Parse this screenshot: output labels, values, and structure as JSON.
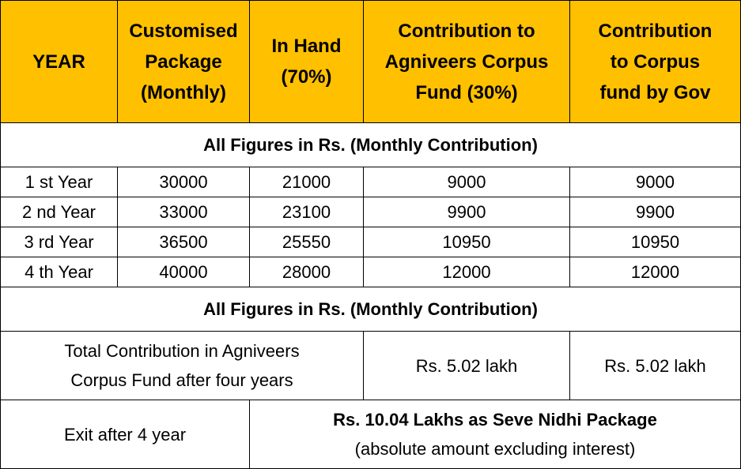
{
  "header": {
    "col_year": "YEAR",
    "col_package": [
      "Customised",
      "Package",
      "(Monthly)"
    ],
    "col_in_hand": [
      "In Hand",
      "(70%)"
    ],
    "col_corpus": [
      "Contribution to",
      "Agniveers Corpus",
      "Fund (30%)"
    ],
    "col_gov": [
      "Contribution",
      "to Corpus",
      "fund by Gov"
    ]
  },
  "band_1": "All Figures in Rs. (Monthly Contribution)",
  "rows": [
    {
      "year": "1 st Year",
      "package": "30000",
      "in_hand": "21000",
      "corpus": "9000",
      "gov": "9000"
    },
    {
      "year": "2 nd Year",
      "package": "33000",
      "in_hand": "23100",
      "corpus": "9900",
      "gov": "9900"
    },
    {
      "year": "3 rd Year",
      "package": "36500",
      "in_hand": "25550",
      "corpus": "10950",
      "gov": "10950"
    },
    {
      "year": "4 th Year",
      "package": "40000",
      "in_hand": "28000",
      "corpus": "12000",
      "gov": "12000"
    }
  ],
  "band_2": "All Figures in Rs. (Monthly Contribution)",
  "total": {
    "label": [
      "Total Contribution in Agniveers",
      "Corpus Fund after four years"
    ],
    "corpus": "Rs. 5.02 lakh",
    "gov": "Rs. 5.02 lakh"
  },
  "exit": {
    "label": "Exit after 4 year",
    "package": "Rs. 10.04 Lakhs as Seve Nidhi Package",
    "note": "(absolute amount excluding interest)"
  },
  "colors": {
    "header_bg": "#ffc000",
    "border": "#000000"
  }
}
